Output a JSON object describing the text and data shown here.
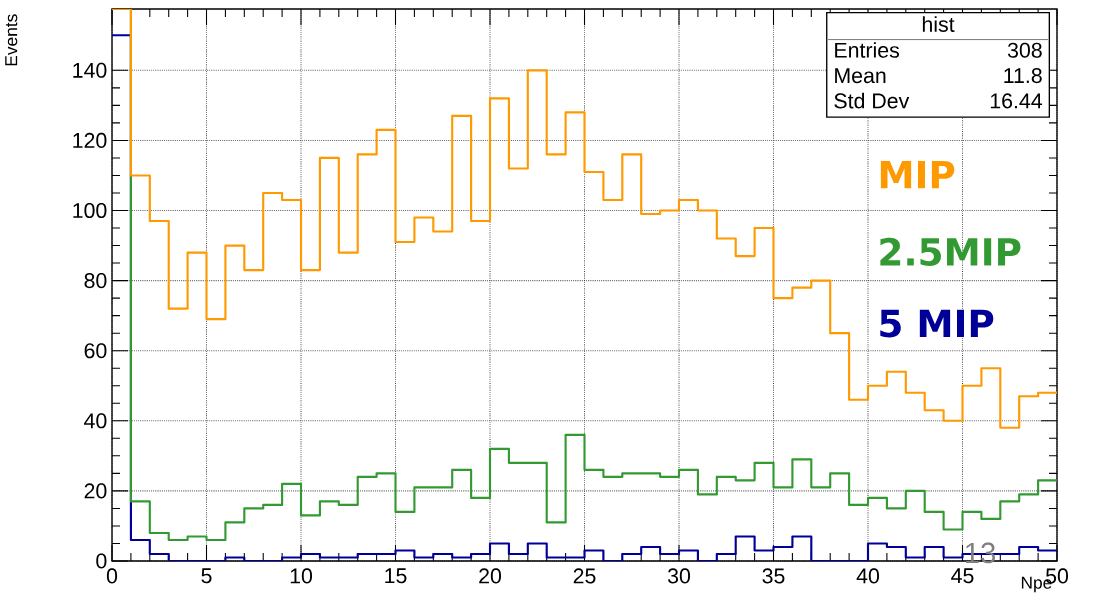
{
  "chart_data": {
    "type": "histogram",
    "xlabel": "Npe",
    "ylabel": "Events",
    "bins": [
      0,
      1,
      2,
      3,
      4,
      5,
      6,
      7,
      8,
      9,
      10,
      11,
      12,
      13,
      14,
      15,
      16,
      17,
      18,
      19,
      20,
      21,
      22,
      23,
      24,
      25,
      26,
      27,
      28,
      29,
      30,
      31,
      32,
      33,
      34,
      35,
      36,
      37,
      38,
      39,
      40,
      41,
      42,
      43,
      44,
      45,
      46,
      47,
      48,
      49,
      50
    ],
    "series": [
      {
        "name": "MIP",
        "color": "#ff9900",
        "values": [
          157.5,
          110,
          97,
          72,
          88,
          69,
          90,
          83,
          105,
          103,
          83,
          115,
          88,
          116,
          123,
          91,
          98,
          94,
          127,
          97,
          132,
          112,
          140,
          116,
          128,
          111,
          103,
          116,
          99,
          100,
          103,
          100,
          92,
          87,
          95,
          75,
          78,
          80,
          65,
          46,
          50,
          54,
          48,
          43,
          40,
          50,
          55,
          38,
          47,
          48
        ]
      },
      {
        "name": "2.5MIP",
        "color": "#339933",
        "values": [
          157.5,
          17,
          8,
          6,
          7,
          6,
          11,
          15,
          16,
          22,
          13,
          17,
          16,
          24,
          25,
          14,
          21,
          21,
          26,
          18,
          32,
          28,
          28,
          11,
          36,
          26,
          24,
          25,
          25,
          24,
          26,
          19,
          24,
          23,
          28,
          21,
          29,
          21,
          25,
          16,
          18,
          15,
          20,
          14,
          9,
          14,
          12,
          17,
          19,
          23
        ]
      },
      {
        "name": "5 MIP",
        "color": "#000099",
        "values": [
          150,
          6,
          2,
          0,
          0,
          0,
          1,
          0,
          0,
          1,
          2,
          1,
          1,
          2,
          2,
          3,
          1,
          2,
          1,
          2,
          5,
          2,
          5,
          1,
          1,
          3,
          0,
          2,
          4,
          2,
          3,
          0,
          2,
          7,
          3,
          4,
          7,
          0,
          0,
          0,
          5,
          4,
          1,
          4,
          1,
          2,
          2,
          2,
          4,
          3
        ]
      }
    ],
    "xlim": [
      0,
      50
    ],
    "ylim": [
      0,
      157.5
    ],
    "xticks": [
      0,
      5,
      10,
      15,
      20,
      25,
      30,
      35,
      40,
      45,
      50
    ],
    "yticks": [
      0,
      20,
      40,
      60,
      80,
      100,
      120,
      140
    ],
    "grid": true,
    "annotations": [
      "hist",
      "Entries",
      "308",
      "Mean",
      "11.8",
      "Std Dev",
      "16.44",
      "13"
    ]
  }
}
